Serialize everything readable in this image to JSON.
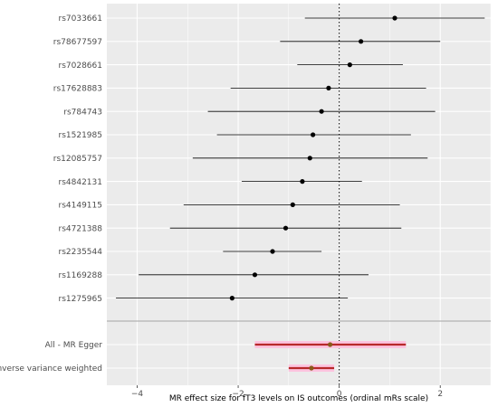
{
  "chart_data": {
    "type": "forest",
    "xlabel": "MR effect size for fT3 levels on IS outcomes (ordinal mRs scale)",
    "xlim": [
      -4.6,
      3.0
    ],
    "x_ticks": [
      -4,
      -2,
      0,
      2
    ],
    "x_tick_labels": [
      "−4",
      "−2",
      "0",
      "2"
    ],
    "reference_line": 0,
    "grid": true,
    "snps": [
      {
        "label": "rs7033661",
        "estimate": 1.1,
        "lower": -0.68,
        "upper": 2.88
      },
      {
        "label": "rs78677597",
        "estimate": 0.43,
        "lower": -1.17,
        "upper": 2.0
      },
      {
        "label": "rs7028661",
        "estimate": 0.21,
        "lower": -0.83,
        "upper": 1.26
      },
      {
        "label": "rs17628883",
        "estimate": -0.21,
        "lower": -2.15,
        "upper": 1.72
      },
      {
        "label": "rs784743",
        "estimate": -0.35,
        "lower": -2.6,
        "upper": 1.9
      },
      {
        "label": "rs1521985",
        "estimate": -0.52,
        "lower": -2.42,
        "upper": 1.42
      },
      {
        "label": "rs12085757",
        "estimate": -0.58,
        "lower": -2.9,
        "upper": 1.75
      },
      {
        "label": "rs4842131",
        "estimate": -0.73,
        "lower": -1.93,
        "upper": 0.45
      },
      {
        "label": "rs4149115",
        "estimate": -0.92,
        "lower": -3.08,
        "upper": 1.2
      },
      {
        "label": "rs4721388",
        "estimate": -1.06,
        "lower": -3.35,
        "upper": 1.23
      },
      {
        "label": "rs2235544",
        "estimate": -1.32,
        "lower": -2.3,
        "upper": -0.35
      },
      {
        "label": "rs1169288",
        "estimate": -1.67,
        "lower": -3.97,
        "upper": 0.58
      },
      {
        "label": "rs1275965",
        "estimate": -2.12,
        "lower": -4.42,
        "upper": 0.17
      }
    ],
    "summaries": [
      {
        "label": "All - MR Egger",
        "estimate": -0.18,
        "lower": -1.67,
        "upper": 1.32
      },
      {
        "label": "All - Inverse variance weighted",
        "estimate": -0.55,
        "lower": -1.0,
        "upper": -0.1
      }
    ],
    "colors": {
      "panel": "#ebebeb",
      "grid": "#ffffff",
      "point": "#000000",
      "ci_line": "#000000",
      "summary_line": "#b8292b",
      "summary_band": "#fcc4df",
      "summary_point": "#8a5a1a",
      "separator": "#b3b3b3"
    }
  }
}
